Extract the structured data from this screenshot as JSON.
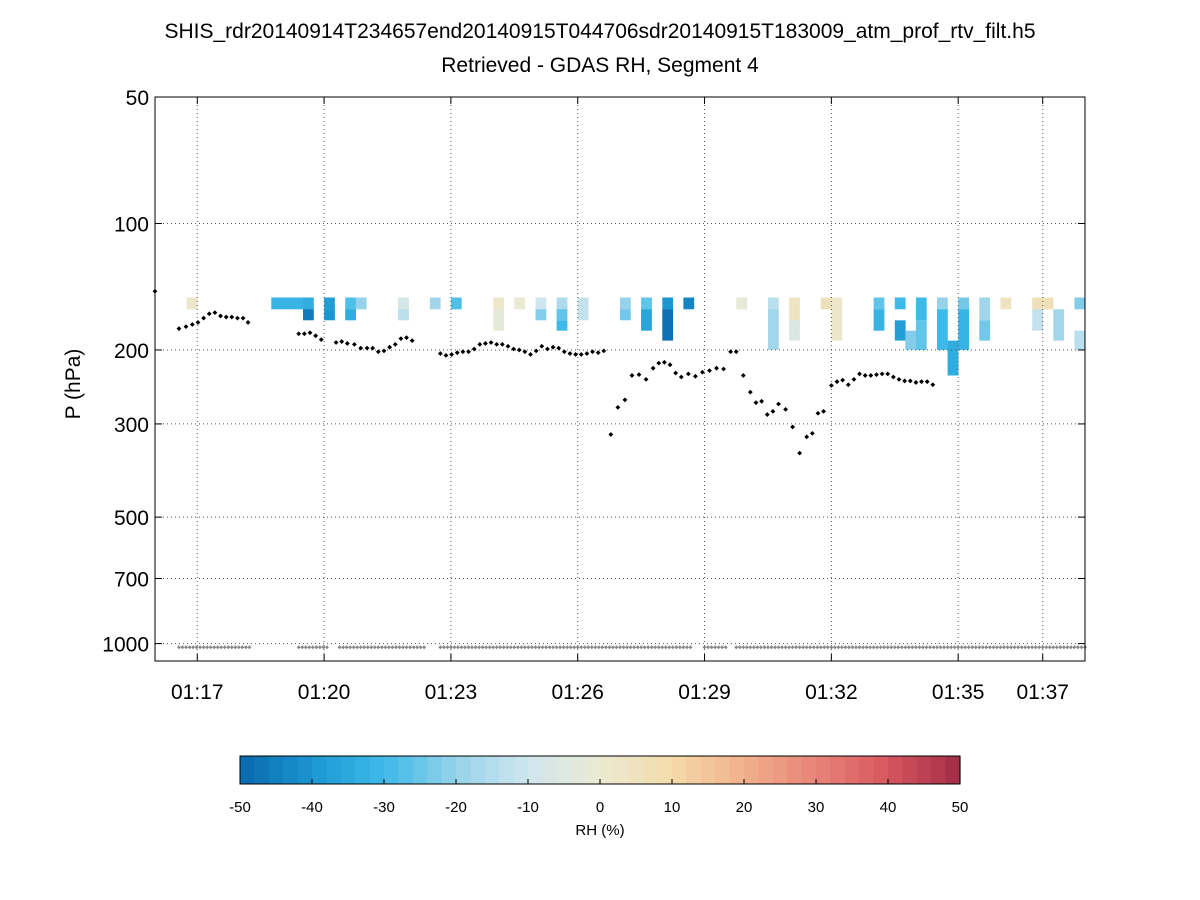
{
  "chart_data": {
    "type": "heatmap",
    "title": "SHIS_rdr20140914T234657end20140915T044706sdr20140915T183009_atm_prof_rtv_filt.h5",
    "subtitle": "Retrieved - GDAS RH, Segment 4",
    "xlabel": "",
    "ylabel": "P (hPa)",
    "y_scale": "log",
    "y_reversed": true,
    "xlim": [
      "01:16:00",
      "01:38:00"
    ],
    "ylim": [
      50,
      1100
    ],
    "x_ticks": [
      "01:17",
      "01:20",
      "01:23",
      "01:26",
      "01:29",
      "01:32",
      "01:35",
      "01:37"
    ],
    "y_ticks": [
      50,
      100,
      200,
      300,
      500,
      700,
      1000
    ],
    "grid": true,
    "colorbar": {
      "label": "RH (%)",
      "ticks": [
        -50,
        -40,
        -30,
        -20,
        -10,
        0,
        10,
        20,
        30,
        40,
        50
      ],
      "range": [
        -50,
        50
      ],
      "colormap": "blue-white-red"
    },
    "heatmap_cells": [
      {
        "t": "01:16:45",
        "p": [
          150,
          160
        ],
        "rh": 2
      },
      {
        "t": "01:18:45",
        "p": [
          150,
          160
        ],
        "rh": -32
      },
      {
        "t": "01:19:00",
        "p": [
          150,
          160
        ],
        "rh": -32
      },
      {
        "t": "01:19:15",
        "p": [
          150,
          160
        ],
        "rh": -32
      },
      {
        "t": "01:19:30",
        "p": [
          150,
          160
        ],
        "rh": -34
      },
      {
        "t": "01:19:30",
        "p": [
          160,
          170
        ],
        "rh": -46
      },
      {
        "t": "01:20:00",
        "p": [
          150,
          160
        ],
        "rh": -38
      },
      {
        "t": "01:20:00",
        "p": [
          160,
          170
        ],
        "rh": -40
      },
      {
        "t": "01:20:30",
        "p": [
          150,
          160
        ],
        "rh": -28
      },
      {
        "t": "01:20:30",
        "p": [
          160,
          170
        ],
        "rh": -34
      },
      {
        "t": "01:20:45",
        "p": [
          150,
          160
        ],
        "rh": -20
      },
      {
        "t": "01:21:45",
        "p": [
          150,
          160
        ],
        "rh": -8
      },
      {
        "t": "01:21:45",
        "p": [
          160,
          170
        ],
        "rh": -14
      },
      {
        "t": "01:22:30",
        "p": [
          150,
          160
        ],
        "rh": -18
      },
      {
        "t": "01:23:00",
        "p": [
          150,
          160
        ],
        "rh": -28
      },
      {
        "t": "01:24:00",
        "p": [
          150,
          160
        ],
        "rh": 2
      },
      {
        "t": "01:24:00",
        "p": [
          160,
          180
        ],
        "rh": -2
      },
      {
        "t": "01:24:30",
        "p": [
          150,
          160
        ],
        "rh": 0
      },
      {
        "t": "01:25:00",
        "p": [
          150,
          160
        ],
        "rh": -10
      },
      {
        "t": "01:25:00",
        "p": [
          160,
          170
        ],
        "rh": -22
      },
      {
        "t": "01:25:30",
        "p": [
          150,
          160
        ],
        "rh": -16
      },
      {
        "t": "01:25:30",
        "p": [
          160,
          170
        ],
        "rh": -26
      },
      {
        "t": "01:25:30",
        "p": [
          170,
          180
        ],
        "rh": -30
      },
      {
        "t": "01:26:00",
        "p": [
          150,
          170
        ],
        "rh": -12
      },
      {
        "t": "01:27:00",
        "p": [
          150,
          160
        ],
        "rh": -20
      },
      {
        "t": "01:27:00",
        "p": [
          160,
          170
        ],
        "rh": -24
      },
      {
        "t": "01:27:30",
        "p": [
          150,
          160
        ],
        "rh": -26
      },
      {
        "t": "01:27:30",
        "p": [
          160,
          180
        ],
        "rh": -36
      },
      {
        "t": "01:28:00",
        "p": [
          150,
          160
        ],
        "rh": -40
      },
      {
        "t": "01:28:00",
        "p": [
          160,
          190
        ],
        "rh": -48
      },
      {
        "t": "01:28:30",
        "p": [
          150,
          160
        ],
        "rh": -44
      },
      {
        "t": "01:29:45",
        "p": [
          150,
          160
        ],
        "rh": -2
      },
      {
        "t": "01:30:30",
        "p": [
          150,
          160
        ],
        "rh": -14
      },
      {
        "t": "01:30:30",
        "p": [
          160,
          200
        ],
        "rh": -18
      },
      {
        "t": "01:31:00",
        "p": [
          150,
          170
        ],
        "rh": 4
      },
      {
        "t": "01:31:00",
        "p": [
          170,
          190
        ],
        "rh": -6
      },
      {
        "t": "01:31:45",
        "p": [
          150,
          160
        ],
        "rh": 6
      },
      {
        "t": "01:32:00",
        "p": [
          150,
          190
        ],
        "rh": 2
      },
      {
        "t": "01:33:00",
        "p": [
          150,
          160
        ],
        "rh": -26
      },
      {
        "t": "01:33:00",
        "p": [
          160,
          180
        ],
        "rh": -32
      },
      {
        "t": "01:33:30",
        "p": [
          150,
          160
        ],
        "rh": -30
      },
      {
        "t": "01:33:30",
        "p": [
          170,
          190
        ],
        "rh": -38
      },
      {
        "t": "01:33:45",
        "p": [
          180,
          200
        ],
        "rh": -22
      },
      {
        "t": "01:34:00",
        "p": [
          150,
          170
        ],
        "rh": -30
      },
      {
        "t": "01:34:00",
        "p": [
          170,
          200
        ],
        "rh": -26
      },
      {
        "t": "01:34:30",
        "p": [
          150,
          160
        ],
        "rh": -20
      },
      {
        "t": "01:34:30",
        "p": [
          160,
          200
        ],
        "rh": -30
      },
      {
        "t": "01:34:45",
        "p": [
          190,
          230
        ],
        "rh": -34
      },
      {
        "t": "01:35:00",
        "p": [
          150,
          160
        ],
        "rh": -24
      },
      {
        "t": "01:35:00",
        "p": [
          160,
          200
        ],
        "rh": -32
      },
      {
        "t": "01:35:30",
        "p": [
          150,
          170
        ],
        "rh": -18
      },
      {
        "t": "01:35:30",
        "p": [
          170,
          190
        ],
        "rh": -24
      },
      {
        "t": "01:36:00",
        "p": [
          150,
          160
        ],
        "rh": 4
      },
      {
        "t": "01:36:45",
        "p": [
          150,
          160
        ],
        "rh": 6
      },
      {
        "t": "01:36:45",
        "p": [
          160,
          180
        ],
        "rh": -12
      },
      {
        "t": "01:37:00",
        "p": [
          150,
          160
        ],
        "rh": 6
      },
      {
        "t": "01:37:15",
        "p": [
          160,
          190
        ],
        "rh": -18
      },
      {
        "t": "01:37:45",
        "p": [
          150,
          160
        ],
        "rh": -22
      },
      {
        "t": "01:37:45",
        "p": [
          180,
          200
        ],
        "rh": -14
      }
    ],
    "series": [
      {
        "marker": "black-diamond",
        "points": [
          [
            "01:16:00",
            145
          ],
          [
            "01:16:34",
            178
          ],
          [
            "01:16:44",
            176
          ],
          [
            "01:16:53",
            174
          ],
          [
            "01:17:01",
            172
          ],
          [
            "01:17:09",
            168
          ],
          [
            "01:17:17",
            164
          ],
          [
            "01:17:25",
            163
          ],
          [
            "01:17:33",
            166
          ],
          [
            "01:17:41",
            167
          ],
          [
            "01:17:49",
            167
          ],
          [
            "01:17:57",
            168
          ],
          [
            "01:18:05",
            168
          ],
          [
            "01:18:12",
            172
          ],
          [
            "01:19:24",
            183
          ],
          [
            "01:19:32",
            183
          ],
          [
            "01:19:40",
            182
          ],
          [
            "01:19:48",
            185
          ],
          [
            "01:19:56",
            189
          ],
          [
            "01:20:17",
            192
          ],
          [
            "01:20:25",
            191
          ],
          [
            "01:20:33",
            193
          ],
          [
            "01:20:43",
            194
          ],
          [
            "01:20:52",
            198
          ],
          [
            "01:21:01",
            198
          ],
          [
            "01:21:09",
            198
          ],
          [
            "01:21:17",
            202
          ],
          [
            "01:21:25",
            201
          ],
          [
            "01:21:33",
            197
          ],
          [
            "01:21:41",
            194
          ],
          [
            "01:21:49",
            188
          ],
          [
            "01:21:57",
            187
          ],
          [
            "01:22:05",
            190
          ],
          [
            "01:22:45",
            204
          ],
          [
            "01:22:53",
            206
          ],
          [
            "01:23:01",
            205
          ],
          [
            "01:23:09",
            203
          ],
          [
            "01:23:17",
            202
          ],
          [
            "01:23:25",
            202
          ],
          [
            "01:23:33",
            199
          ],
          [
            "01:23:41",
            194
          ],
          [
            "01:23:49",
            193
          ],
          [
            "01:23:57",
            192
          ],
          [
            "01:24:05",
            194
          ],
          [
            "01:24:13",
            194
          ],
          [
            "01:24:21",
            196
          ],
          [
            "01:24:29",
            199
          ],
          [
            "01:24:37",
            200
          ],
          [
            "01:24:45",
            202
          ],
          [
            "01:24:53",
            205
          ],
          [
            "01:25:01",
            201
          ],
          [
            "01:25:09",
            196
          ],
          [
            "01:25:17",
            199
          ],
          [
            "01:25:25",
            197
          ],
          [
            "01:25:33",
            198
          ],
          [
            "01:25:41",
            202
          ],
          [
            "01:25:49",
            204
          ],
          [
            "01:25:57",
            205
          ],
          [
            "01:26:05",
            205
          ],
          [
            "01:26:13",
            204
          ],
          [
            "01:26:21",
            202
          ],
          [
            "01:26:29",
            203
          ],
          [
            "01:26:37",
            201
          ],
          [
            "01:26:47",
            318
          ],
          [
            "01:26:57",
            274
          ],
          [
            "01:27:07",
            263
          ],
          [
            "01:27:17",
            230
          ],
          [
            "01:27:27",
            229
          ],
          [
            "01:27:37",
            235
          ],
          [
            "01:27:47",
            221
          ],
          [
            "01:27:55",
            215
          ],
          [
            "01:28:03",
            214
          ],
          [
            "01:28:11",
            217
          ],
          [
            "01:28:19",
            227
          ],
          [
            "01:28:27",
            232
          ],
          [
            "01:28:37",
            228
          ],
          [
            "01:28:47",
            231
          ],
          [
            "01:28:57",
            226
          ],
          [
            "01:29:07",
            224
          ],
          [
            "01:29:17",
            221
          ],
          [
            "01:29:27",
            222
          ],
          [
            "01:29:37",
            202
          ],
          [
            "01:29:45",
            202
          ],
          [
            "01:29:55",
            230
          ],
          [
            "01:30:05",
            252
          ],
          [
            "01:30:13",
            267
          ],
          [
            "01:30:21",
            265
          ],
          [
            "01:30:29",
            285
          ],
          [
            "01:30:37",
            280
          ],
          [
            "01:30:45",
            269
          ],
          [
            "01:30:55",
            277
          ],
          [
            "01:31:05",
            305
          ],
          [
            "01:31:15",
            352
          ],
          [
            "01:31:25",
            322
          ],
          [
            "01:31:33",
            316
          ],
          [
            "01:31:41",
            283
          ],
          [
            "01:31:49",
            280
          ],
          [
            "01:32:00",
            243
          ],
          [
            "01:32:08",
            238
          ],
          [
            "01:32:16",
            236
          ],
          [
            "01:32:24",
            242
          ],
          [
            "01:32:32",
            235
          ],
          [
            "01:32:40",
            228
          ],
          [
            "01:32:48",
            230
          ],
          [
            "01:32:56",
            230
          ],
          [
            "01:33:04",
            229
          ],
          [
            "01:33:12",
            228
          ],
          [
            "01:33:20",
            228
          ],
          [
            "01:33:28",
            232
          ],
          [
            "01:33:36",
            235
          ],
          [
            "01:33:44",
            237
          ],
          [
            "01:33:52",
            237
          ],
          [
            "01:34:00",
            239
          ],
          [
            "01:34:08",
            238
          ],
          [
            "01:34:16",
            238
          ],
          [
            "01:34:24",
            242
          ]
        ]
      }
    ],
    "surface_row": {
      "marker": "gray-diamond",
      "pressure": 1020,
      "segments": [
        [
          "01:16:34",
          "01:18:14"
        ],
        [
          "01:19:24",
          "01:20:05"
        ],
        [
          "01:20:22",
          "01:22:25"
        ],
        [
          "01:22:45",
          "01:28:40"
        ],
        [
          "01:29:00",
          "01:29:30"
        ],
        [
          "01:29:45",
          "01:38:00"
        ]
      ]
    }
  }
}
